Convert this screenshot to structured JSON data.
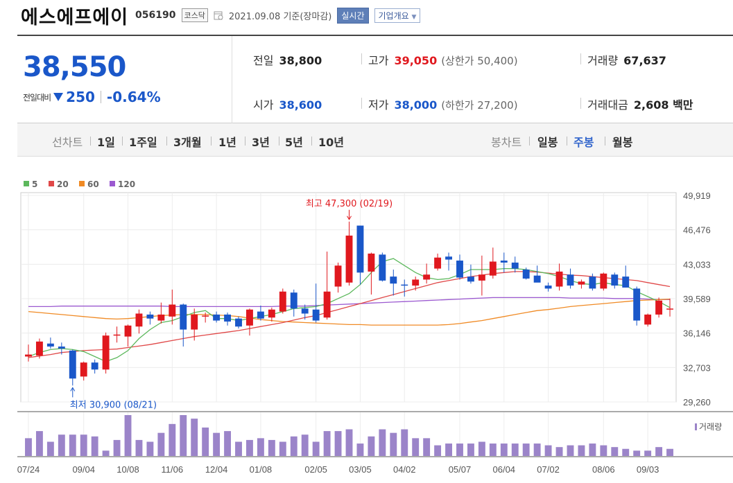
{
  "header": {
    "company": "에스에프에이",
    "code": "056190",
    "market": "코스닥",
    "date": "2021.09.08 기준(장마감)",
    "realtime_label": "실시간",
    "overview_label": "기업개요"
  },
  "price": {
    "current": "38,550",
    "change_label": "전일대비",
    "change": "250",
    "change_pct": "-0.64%",
    "direction": "down"
  },
  "stats": {
    "prev_label": "전일",
    "prev": "38,800",
    "high_label": "고가",
    "high": "39,050",
    "upper_limit": "(상한가 50,400)",
    "volume_label": "거래량",
    "volume": "67,637",
    "open_label": "시가",
    "open": "38,600",
    "low_label": "저가",
    "low": "38,000",
    "lower_limit": "(하한가 27,200)",
    "amount_label": "거래대금",
    "amount": "2,608 백만"
  },
  "periods": {
    "line_label": "선차트",
    "items": [
      "1일",
      "1주일",
      "3개월",
      "1년",
      "3년",
      "5년",
      "10년"
    ],
    "candle_label": "봉차트",
    "candle_items": [
      "일봉",
      "주봉",
      "월봉"
    ],
    "active_candle": "주봉"
  },
  "colors": {
    "up": "#e0181e",
    "down": "#1a57c9",
    "ma5": "#5cb85c",
    "ma20": "#e04848",
    "ma60": "#f08a24",
    "ma120": "#9b59d0",
    "volume": "#9b84c9"
  },
  "chart_data": {
    "type": "candlestick",
    "legend": [
      {
        "name": "5",
        "color": "#5cb85c"
      },
      {
        "name": "20",
        "color": "#e04848"
      },
      {
        "name": "60",
        "color": "#f08a24"
      },
      {
        "name": "120",
        "color": "#9b59d0"
      }
    ],
    "y_ticks": [
      "49,919",
      "46,476",
      "43,033",
      "39,589",
      "36,146",
      "32,703",
      "29,260"
    ],
    "ylim": [
      29260,
      49919
    ],
    "x_ticks": [
      "07/24",
      "09/04",
      "10/08",
      "11/06",
      "12/04",
      "01/08",
      "02/05",
      "03/05",
      "04/02",
      "05/07",
      "06/04",
      "07/02",
      "08/06",
      "09/03"
    ],
    "annotations": {
      "max_label": "최고 47,300 (02/19)",
      "min_label": "최저 30,900 (08/21)"
    },
    "volume_label": "거래량",
    "candles": [
      {
        "o": 33800,
        "h": 35000,
        "l": 33300,
        "c": 34000
      },
      {
        "o": 33900,
        "h": 35600,
        "l": 33600,
        "c": 35300
      },
      {
        "o": 35100,
        "h": 35700,
        "l": 34600,
        "c": 34800
      },
      {
        "o": 34800,
        "h": 35200,
        "l": 34000,
        "c": 34600
      },
      {
        "o": 34400,
        "h": 34500,
        "l": 30900,
        "c": 31600
      },
      {
        "o": 31800,
        "h": 33300,
        "l": 31400,
        "c": 33200
      },
      {
        "o": 33200,
        "h": 33500,
        "l": 32100,
        "c": 32500
      },
      {
        "o": 32500,
        "h": 36200,
        "l": 32100,
        "c": 35900
      },
      {
        "o": 36000,
        "h": 36800,
        "l": 35200,
        "c": 36000
      },
      {
        "o": 35800,
        "h": 37000,
        "l": 34800,
        "c": 36900
      },
      {
        "o": 36800,
        "h": 38500,
        "l": 36100,
        "c": 38100
      },
      {
        "o": 38000,
        "h": 38300,
        "l": 37000,
        "c": 37600
      },
      {
        "o": 37400,
        "h": 39200,
        "l": 37100,
        "c": 38000
      },
      {
        "o": 37800,
        "h": 40500,
        "l": 37000,
        "c": 39000
      },
      {
        "o": 39000,
        "h": 39100,
        "l": 34800,
        "c": 36500
      },
      {
        "o": 36500,
        "h": 38600,
        "l": 35400,
        "c": 38000
      },
      {
        "o": 37800,
        "h": 38200,
        "l": 37200,
        "c": 37900
      },
      {
        "o": 38000,
        "h": 38300,
        "l": 37200,
        "c": 37400
      },
      {
        "o": 38000,
        "h": 38200,
        "l": 36900,
        "c": 37300
      },
      {
        "o": 37600,
        "h": 37800,
        "l": 36600,
        "c": 36800
      },
      {
        "o": 36900,
        "h": 38600,
        "l": 35900,
        "c": 38500
      },
      {
        "o": 38300,
        "h": 38900,
        "l": 37400,
        "c": 37600
      },
      {
        "o": 37700,
        "h": 38700,
        "l": 37300,
        "c": 38500
      },
      {
        "o": 38300,
        "h": 40600,
        "l": 38100,
        "c": 40300
      },
      {
        "o": 40200,
        "h": 40500,
        "l": 37800,
        "c": 38600
      },
      {
        "o": 38600,
        "h": 39000,
        "l": 37500,
        "c": 38100
      },
      {
        "o": 38500,
        "h": 41100,
        "l": 37200,
        "c": 37400
      },
      {
        "o": 37700,
        "h": 44300,
        "l": 37500,
        "c": 40300
      },
      {
        "o": 40800,
        "h": 43200,
        "l": 40200,
        "c": 42900
      },
      {
        "o": 41200,
        "h": 47300,
        "l": 40900,
        "c": 45900
      },
      {
        "o": 46900,
        "h": 46900,
        "l": 41000,
        "c": 42200
      },
      {
        "o": 42300,
        "h": 44200,
        "l": 40000,
        "c": 44100
      },
      {
        "o": 44000,
        "h": 44200,
        "l": 41300,
        "c": 41400
      },
      {
        "o": 41800,
        "h": 42500,
        "l": 39900,
        "c": 41100
      },
      {
        "o": 41000,
        "h": 41500,
        "l": 39800,
        "c": 40900
      },
      {
        "o": 40900,
        "h": 41800,
        "l": 40400,
        "c": 41500
      },
      {
        "o": 41500,
        "h": 43100,
        "l": 41100,
        "c": 42000
      },
      {
        "o": 42600,
        "h": 44100,
        "l": 42400,
        "c": 43700
      },
      {
        "o": 43800,
        "h": 44200,
        "l": 42400,
        "c": 43500
      },
      {
        "o": 43400,
        "h": 44000,
        "l": 41500,
        "c": 41700
      },
      {
        "o": 41800,
        "h": 43000,
        "l": 41100,
        "c": 41300
      },
      {
        "o": 41400,
        "h": 43900,
        "l": 39900,
        "c": 42000
      },
      {
        "o": 41900,
        "h": 44700,
        "l": 41600,
        "c": 43300
      },
      {
        "o": 43400,
        "h": 44200,
        "l": 42200,
        "c": 43200
      },
      {
        "o": 43200,
        "h": 43800,
        "l": 42200,
        "c": 42600
      },
      {
        "o": 42500,
        "h": 42700,
        "l": 41500,
        "c": 41600
      },
      {
        "o": 41900,
        "h": 42900,
        "l": 41300,
        "c": 41200
      },
      {
        "o": 40900,
        "h": 41200,
        "l": 40300,
        "c": 40600
      },
      {
        "o": 40800,
        "h": 43100,
        "l": 40400,
        "c": 42300
      },
      {
        "o": 42000,
        "h": 42600,
        "l": 40600,
        "c": 40900
      },
      {
        "o": 41000,
        "h": 41500,
        "l": 40600,
        "c": 41300
      },
      {
        "o": 41800,
        "h": 42100,
        "l": 40400,
        "c": 40600
      },
      {
        "o": 40600,
        "h": 42200,
        "l": 40400,
        "c": 42100
      },
      {
        "o": 42000,
        "h": 42200,
        "l": 40600,
        "c": 40900
      },
      {
        "o": 41800,
        "h": 42900,
        "l": 40700,
        "c": 40700
      },
      {
        "o": 40600,
        "h": 40800,
        "l": 36900,
        "c": 37400
      },
      {
        "o": 37000,
        "h": 38100,
        "l": 36800,
        "c": 38000
      },
      {
        "o": 38000,
        "h": 39700,
        "l": 37700,
        "c": 39400
      },
      {
        "o": 38600,
        "h": 39600,
        "l": 37800,
        "c": 38600
      }
    ],
    "ma5": [
      33800,
      34200,
      34500,
      34600,
      34500,
      34300,
      33800,
      33300,
      33700,
      34400,
      35600,
      36500,
      37200,
      37400,
      37800,
      38200,
      38400,
      37600,
      37600,
      37400,
      37600,
      37800,
      38000,
      38300,
      38600,
      38700,
      38800,
      39100,
      39600,
      40100,
      41000,
      42200,
      43300,
      43600,
      42900,
      42200,
      41700,
      41500,
      41600,
      42000,
      42500,
      42500,
      42500,
      42600,
      42600,
      42500,
      42300,
      42100,
      41800,
      41400,
      41100,
      41000,
      41200,
      41000,
      40900,
      40300,
      39800,
      39300,
      38700
    ],
    "ma20": [
      33700,
      33850,
      34000,
      34200,
      34300,
      34400,
      34450,
      34500,
      34550,
      34700,
      34850,
      35000,
      35200,
      35400,
      35600,
      35800,
      35950,
      36100,
      36250,
      36400,
      36600,
      36800,
      37000,
      37200,
      37450,
      37700,
      37900,
      38200,
      38500,
      38800,
      39100,
      39400,
      39700,
      40000,
      40300,
      40600,
      40900,
      41200,
      41400,
      41600,
      41800,
      41950,
      42100,
      42200,
      42300,
      42300,
      42250,
      42150,
      42050,
      41950,
      41900,
      41800,
      41700,
      41600,
      41500,
      41400,
      41200,
      41000,
      40800
    ],
    "ma60": [
      38300,
      38200,
      38100,
      38000,
      37900,
      37800,
      37700,
      37600,
      37550,
      37600,
      37700,
      37800,
      37900,
      37950,
      38000,
      38000,
      38000,
      37950,
      37900,
      37800,
      37650,
      37500,
      37400,
      37300,
      37250,
      37200,
      37150,
      37100,
      37050,
      37000,
      37000,
      36950,
      36950,
      36950,
      36950,
      36950,
      36950,
      36950,
      37000,
      37100,
      37250,
      37400,
      37600,
      37800,
      38000,
      38200,
      38400,
      38500,
      38650,
      38800,
      38900,
      39000,
      39100,
      39200,
      39300,
      39400,
      39450,
      39500,
      39550
    ],
    "ma120": [
      38800,
      38800,
      38800,
      38850,
      38850,
      38850,
      38850,
      38850,
      38850,
      38850,
      38850,
      38850,
      38850,
      38800,
      38800,
      38800,
      38800,
      38800,
      38800,
      38800,
      38800,
      38800,
      38800,
      38850,
      38850,
      38850,
      38900,
      38950,
      39000,
      39050,
      39100,
      39150,
      39200,
      39250,
      39300,
      39350,
      39400,
      39450,
      39500,
      39550,
      39600,
      39650,
      39700,
      39700,
      39700,
      39700,
      39700,
      39700,
      39700,
      39650,
      39650,
      39650,
      39650,
      39600,
      39600,
      39600,
      39550,
      39500,
      39500
    ],
    "volume": [
      20,
      28,
      16,
      24,
      24,
      24,
      22,
      6,
      18,
      46,
      18,
      16,
      26,
      36,
      46,
      42,
      32,
      26,
      28,
      16,
      18,
      20,
      18,
      16,
      22,
      24,
      16,
      28,
      28,
      30,
      14,
      22,
      30,
      26,
      30,
      20,
      20,
      12,
      14,
      14,
      14,
      16,
      14,
      14,
      14,
      14,
      14,
      12,
      10,
      12,
      12,
      14,
      12,
      10,
      8,
      6,
      6,
      10,
      8
    ]
  }
}
